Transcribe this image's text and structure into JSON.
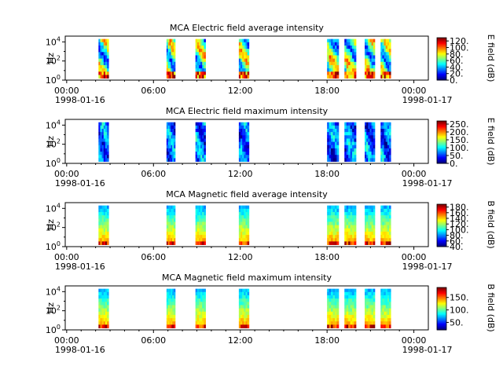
{
  "chart_data": [
    {
      "type": "heatmap",
      "title": "MCA  Electric field average intensity",
      "ylabel": "Hz",
      "colorbar_label": "E field (dB)",
      "colorbar_ticks": [
        "0.",
        "20.",
        "40.",
        "60.",
        "80.",
        "100.",
        "120."
      ],
      "colorbar_range": [
        0,
        130
      ],
      "palette": "avg",
      "y_ticks": [
        "10^0",
        "10^2",
        "10^4"
      ],
      "x_ticks": [
        {
          "time": "00:00",
          "date": "1998-01-16"
        },
        {
          "time": "06:00",
          "date": ""
        },
        {
          "time": "12:00",
          "date": ""
        },
        {
          "time": "18:00",
          "date": ""
        },
        {
          "time": "00:00",
          "date": "1998-01-17"
        }
      ],
      "xlim_hours": [
        -0.1,
        25.0
      ],
      "ylim_log10": [
        0,
        4.6
      ],
      "data_segments_hours": [
        [
          2.2,
          2.9
        ],
        [
          6.9,
          7.5
        ],
        [
          8.9,
          9.6
        ],
        [
          11.9,
          12.6
        ],
        [
          18.0,
          18.8
        ],
        [
          19.2,
          20.0
        ],
        [
          20.6,
          21.3
        ],
        [
          21.7,
          22.4
        ]
      ]
    },
    {
      "type": "heatmap",
      "title": "MCA  Electric field maximum intensity",
      "ylabel": "Hz",
      "colorbar_label": "E field (dB)",
      "colorbar_ticks": [
        "0.",
        "50.",
        "100.",
        "150.",
        "200.",
        "250."
      ],
      "colorbar_range": [
        0,
        270
      ],
      "palette": "max",
      "y_ticks": [
        "10^0",
        "10^2",
        "10^4"
      ],
      "x_ticks": [
        {
          "time": "00:00",
          "date": "1998-01-16"
        },
        {
          "time": "06:00",
          "date": ""
        },
        {
          "time": "12:00",
          "date": ""
        },
        {
          "time": "18:00",
          "date": ""
        },
        {
          "time": "00:00",
          "date": "1998-01-17"
        }
      ],
      "xlim_hours": [
        -0.1,
        25.0
      ],
      "ylim_log10": [
        0,
        4.6
      ],
      "data_segments_hours": [
        [
          2.2,
          2.9
        ],
        [
          6.9,
          7.5
        ],
        [
          8.9,
          9.6
        ],
        [
          11.9,
          12.6
        ],
        [
          18.0,
          18.8
        ],
        [
          19.2,
          20.0
        ],
        [
          20.6,
          21.3
        ],
        [
          21.7,
          22.4
        ]
      ]
    },
    {
      "type": "heatmap",
      "title": "MCA  Magnetic field average intensity",
      "ylabel": "Hz",
      "colorbar_label": "B field (dB)",
      "colorbar_ticks": [
        "40.",
        "60.",
        "80.",
        "100.",
        "120.",
        "140.",
        "160.",
        "180."
      ],
      "colorbar_range": [
        40,
        190
      ],
      "palette": "mag",
      "y_ticks": [
        "10^0",
        "10^2",
        "10^4"
      ],
      "x_ticks": [
        {
          "time": "00:00",
          "date": "1998-01-16"
        },
        {
          "time": "06:00",
          "date": ""
        },
        {
          "time": "12:00",
          "date": ""
        },
        {
          "time": "18:00",
          "date": ""
        },
        {
          "time": "00:00",
          "date": "1998-01-17"
        }
      ],
      "xlim_hours": [
        -0.1,
        25.0
      ],
      "ylim_log10": [
        0,
        4.6
      ],
      "data_segments_hours": [
        [
          2.2,
          2.9
        ],
        [
          6.9,
          7.5
        ],
        [
          8.9,
          9.6
        ],
        [
          11.9,
          12.6
        ],
        [
          18.0,
          18.8
        ],
        [
          19.2,
          20.0
        ],
        [
          20.6,
          21.3
        ],
        [
          21.7,
          22.4
        ]
      ]
    },
    {
      "type": "heatmap",
      "title": "MCA  Magnetic field maximum intensity",
      "ylabel": "Hz",
      "colorbar_label": "B field (dB)",
      "colorbar_ticks": [
        "50.",
        "100.",
        "150."
      ],
      "colorbar_range": [
        20,
        190
      ],
      "palette": "mag",
      "y_ticks": [
        "10^0",
        "10^2",
        "10^4"
      ],
      "x_ticks": [
        {
          "time": "00:00",
          "date": "1998-01-16"
        },
        {
          "time": "06:00",
          "date": ""
        },
        {
          "time": "12:00",
          "date": ""
        },
        {
          "time": "18:00",
          "date": ""
        },
        {
          "time": "00:00",
          "date": "1998-01-17"
        }
      ],
      "xlim_hours": [
        -0.1,
        25.0
      ],
      "ylim_log10": [
        0,
        4.6
      ],
      "data_segments_hours": [
        [
          2.2,
          2.9
        ],
        [
          6.9,
          7.5
        ],
        [
          8.9,
          9.6
        ],
        [
          11.9,
          12.6
        ],
        [
          18.0,
          18.8
        ],
        [
          19.2,
          20.0
        ],
        [
          20.6,
          21.3
        ],
        [
          21.7,
          22.4
        ]
      ]
    }
  ]
}
